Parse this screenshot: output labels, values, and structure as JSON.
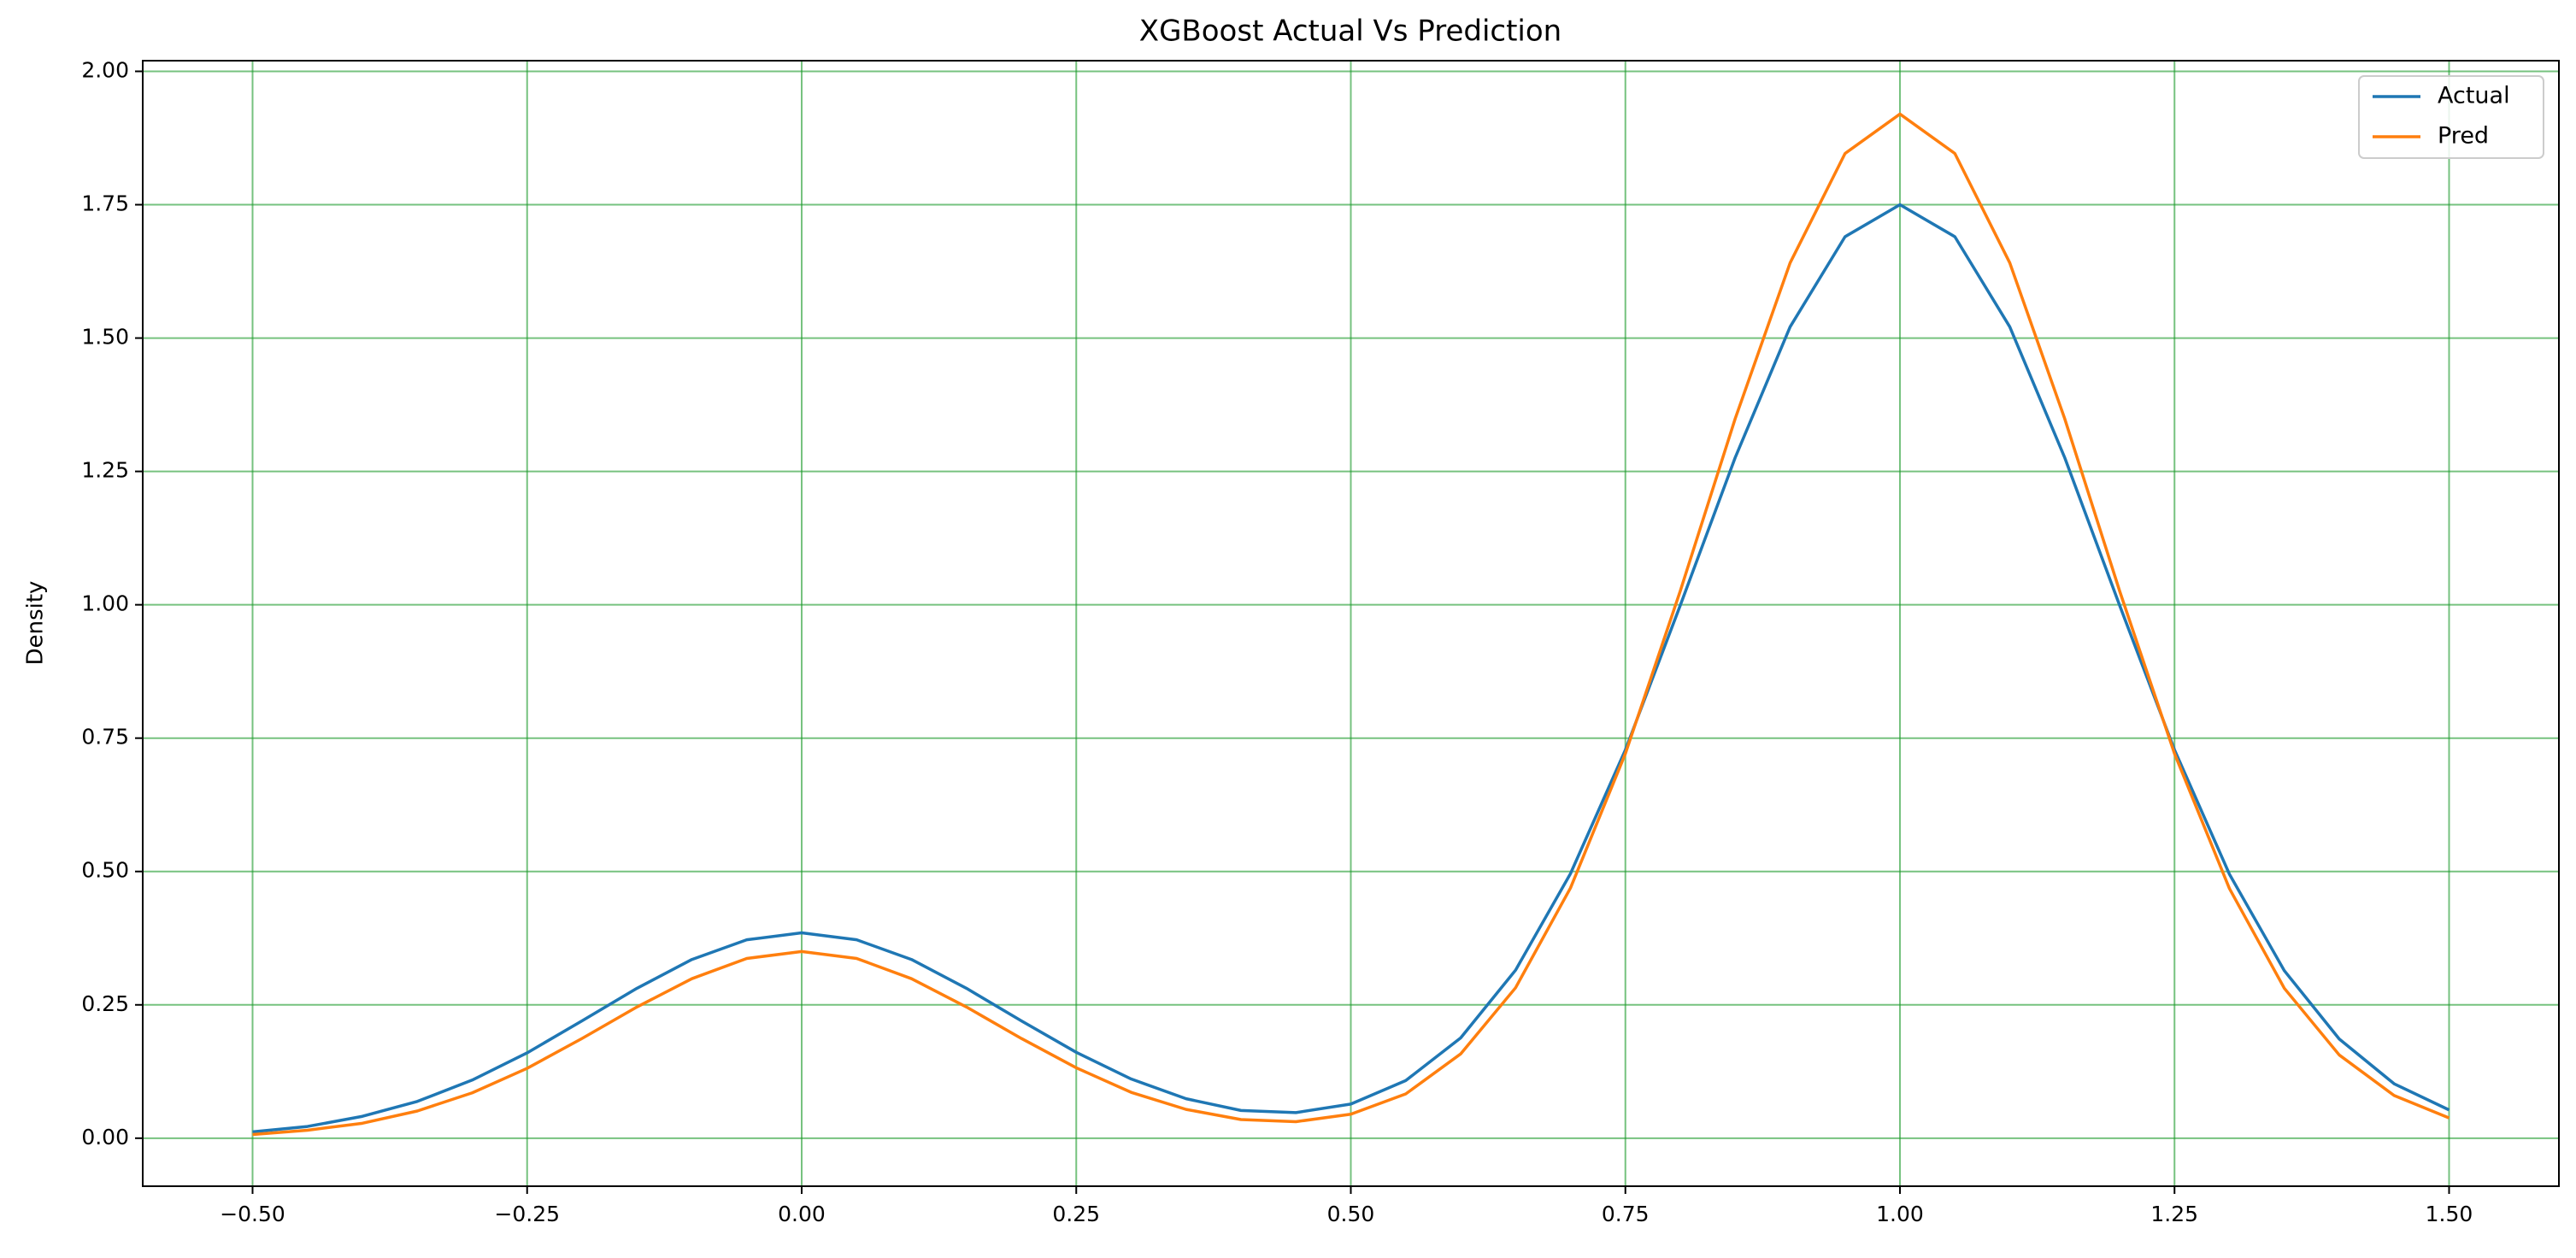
{
  "chart_data": {
    "type": "line",
    "title": "XGBoost Actual Vs Prediction",
    "ylabel": "Density",
    "x": [
      -0.5,
      -0.45,
      -0.4,
      -0.35,
      -0.3,
      -0.25,
      -0.2,
      -0.15,
      -0.1,
      -0.05,
      0,
      0.05,
      0.1,
      0.15,
      0.2,
      0.25,
      0.3,
      0.35,
      0.4,
      0.45,
      0.5,
      0.55,
      0.6,
      0.65,
      0.7,
      0.75,
      0.8,
      0.85,
      0.9,
      0.95,
      1.0,
      1.05,
      1.1,
      1.15,
      1.2,
      1.25,
      1.3,
      1.35,
      1.4,
      1.45,
      1.5
    ],
    "series": [
      {
        "name": "Actual",
        "color": "#1f77b4",
        "values": [
          0.012,
          0.022,
          0.041,
          0.069,
          0.109,
          0.16,
          0.22,
          0.281,
          0.335,
          0.372,
          0.385,
          0.372,
          0.335,
          0.281,
          0.22,
          0.161,
          0.111,
          0.074,
          0.052,
          0.048,
          0.064,
          0.108,
          0.188,
          0.315,
          0.496,
          0.728,
          0.999,
          1.276,
          1.521,
          1.69,
          1.75,
          1.69,
          1.521,
          1.276,
          0.999,
          0.728,
          0.495,
          0.314,
          0.186,
          0.102,
          0.053
        ]
      },
      {
        "name": "Pred",
        "color": "#ff7f0e",
        "values": [
          0.007,
          0.015,
          0.028,
          0.051,
          0.085,
          0.131,
          0.187,
          0.246,
          0.299,
          0.337,
          0.35,
          0.337,
          0.299,
          0.246,
          0.187,
          0.132,
          0.086,
          0.054,
          0.035,
          0.031,
          0.045,
          0.083,
          0.158,
          0.282,
          0.469,
          0.721,
          1.026,
          1.349,
          1.641,
          1.846,
          1.92,
          1.846,
          1.641,
          1.349,
          1.026,
          0.721,
          0.468,
          0.281,
          0.156,
          0.08,
          0.038
        ]
      }
    ],
    "xlim": [
      -0.6,
      1.6
    ],
    "ylim": [
      -0.09,
      2.02
    ],
    "xticks": [
      {
        "value": -0.5,
        "label": "−0.50"
      },
      {
        "value": -0.25,
        "label": "−0.25"
      },
      {
        "value": 0,
        "label": "0.00"
      },
      {
        "value": 0.25,
        "label": "0.25"
      },
      {
        "value": 0.5,
        "label": "0.50"
      },
      {
        "value": 0.75,
        "label": "0.75"
      },
      {
        "value": 1.0,
        "label": "1.00"
      },
      {
        "value": 1.25,
        "label": "1.25"
      },
      {
        "value": 1.5,
        "label": "1.50"
      }
    ],
    "yticks": [
      {
        "value": 0,
        "label": "0.00"
      },
      {
        "value": 0.25,
        "label": "0.25"
      },
      {
        "value": 0.5,
        "label": "0.50"
      },
      {
        "value": 0.75,
        "label": "0.75"
      },
      {
        "value": 1.0,
        "label": "1.00"
      },
      {
        "value": 1.25,
        "label": "1.25"
      },
      {
        "value": 1.5,
        "label": "1.50"
      },
      {
        "value": 1.75,
        "label": "1.75"
      },
      {
        "value": 2.0,
        "label": "2.00"
      }
    ],
    "grid": true,
    "legend": "upper right"
  }
}
